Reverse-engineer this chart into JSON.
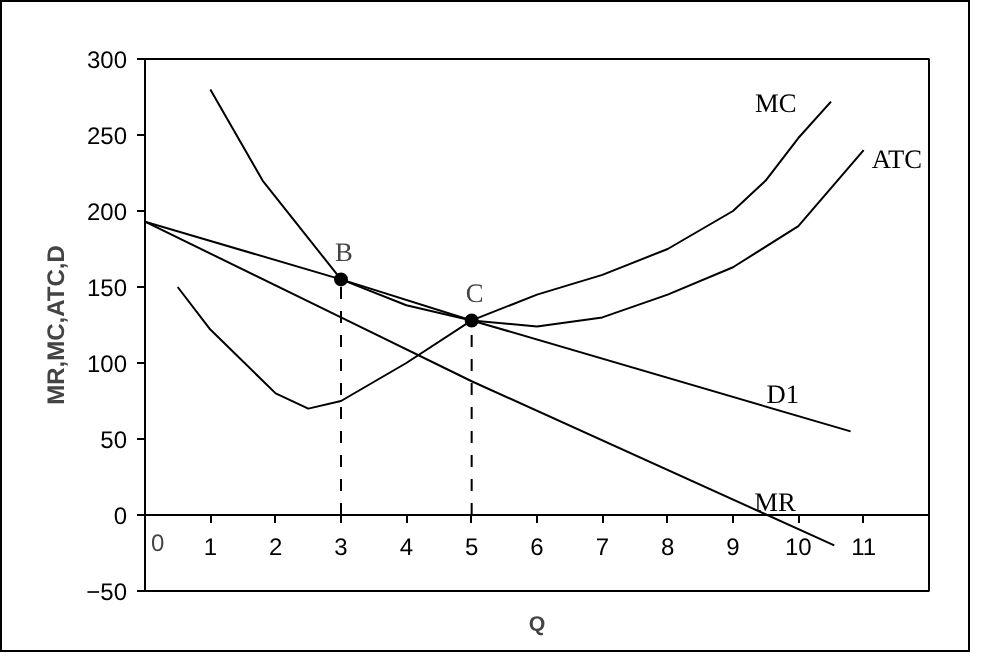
{
  "chart_data": {
    "type": "line",
    "xlabel": "Q",
    "ylabel": "MR,MC,ATC,D",
    "xlim": [
      0,
      12
    ],
    "ylim": [
      -50,
      300
    ],
    "xticks": [
      0,
      1,
      2,
      3,
      4,
      5,
      6,
      7,
      8,
      9,
      10,
      11
    ],
    "yticks": [
      -50,
      0,
      50,
      100,
      150,
      200,
      250,
      300
    ],
    "grid": false,
    "series": [
      {
        "name": "MC",
        "color": "#000000",
        "x": [
          0.5,
          1,
          2,
          2.5,
          3,
          4,
          5,
          6,
          7,
          8,
          9,
          9.5,
          10,
          10.5
        ],
        "values": [
          150,
          122,
          80,
          70,
          75,
          100,
          128,
          145,
          158,
          175,
          200,
          220,
          248,
          272
        ]
      },
      {
        "name": "ATC",
        "color": "#000000",
        "x": [
          1,
          1.8,
          3,
          4,
          5,
          6,
          7,
          8,
          9,
          10,
          11
        ],
        "values": [
          280,
          220,
          155,
          138,
          128,
          124,
          130,
          145,
          163,
          190,
          240
        ]
      },
      {
        "name": "D1",
        "color": "#000000",
        "x": [
          0,
          3,
          5,
          10.8
        ],
        "values": [
          193,
          155,
          128,
          55
        ]
      },
      {
        "name": "MR",
        "color": "#000000",
        "x": [
          0,
          3,
          5,
          10.55
        ],
        "values": [
          193,
          130,
          88,
          -20
        ]
      },
      {
        "color": "#000000",
        "x": [
          3,
          3
        ],
        "values": [
          0,
          155
        ],
        "line_style": "dashed"
      },
      {
        "color": "#000000",
        "x": [
          5,
          5
        ],
        "values": [
          0,
          128
        ],
        "line_style": "dashed"
      },
      {
        "type": "scatter",
        "color": "#000000",
        "x": [
          3,
          5
        ],
        "values": [
          155,
          128
        ],
        "marker": "circle"
      }
    ],
    "annotations": [
      {
        "text": "B",
        "x": 3,
        "y": 155
      },
      {
        "text": "C",
        "x": 5,
        "y": 128
      }
    ]
  }
}
